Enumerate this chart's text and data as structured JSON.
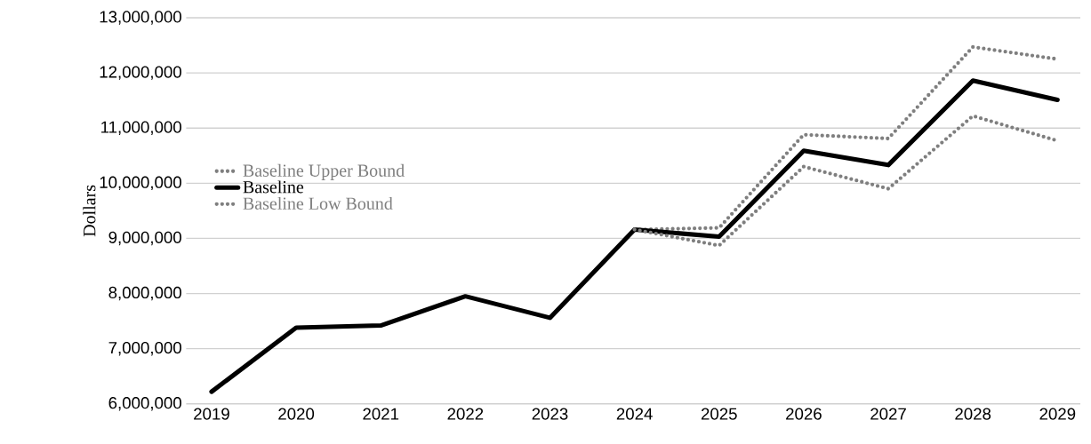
{
  "chart_data": {
    "type": "line",
    "ylabel": "Dollars",
    "categories": [
      "2019",
      "2020",
      "2021",
      "2022",
      "2023",
      "2024",
      "2025",
      "2026",
      "2027",
      "2028",
      "2029"
    ],
    "series": [
      {
        "name": "Baseline Upper Bound",
        "color": "#7f7f7f",
        "line_style": "dotted",
        "values": [
          null,
          null,
          null,
          null,
          null,
          9160000,
          9190000,
          10880000,
          10810000,
          12470000,
          12250000
        ]
      },
      {
        "name": "Baseline",
        "color": "#000000",
        "line_style": "solid",
        "values": [
          6220000,
          7380000,
          7420000,
          7950000,
          7560000,
          9160000,
          9030000,
          10590000,
          10330000,
          11860000,
          11510000
        ]
      },
      {
        "name": "Baseline Low Bound",
        "color": "#7f7f7f",
        "line_style": "dotted",
        "values": [
          null,
          null,
          null,
          null,
          null,
          9160000,
          8870000,
          10300000,
          9900000,
          11220000,
          10770000
        ]
      }
    ],
    "ylim": [
      6000000,
      13000000
    ],
    "yticks": [
      {
        "value": 6000000,
        "label": "6,000,000"
      },
      {
        "value": 7000000,
        "label": "7,000,000"
      },
      {
        "value": 8000000,
        "label": "8,000,000"
      },
      {
        "value": 9000000,
        "label": "9,000,000"
      },
      {
        "value": 10000000,
        "label": "10,000,000"
      },
      {
        "value": 11000000,
        "label": "11,000,000"
      },
      {
        "value": 12000000,
        "label": "12,000,000"
      },
      {
        "value": 13000000,
        "label": "13,000,000"
      }
    ],
    "grid": "y",
    "legend": "left",
    "marker": "none"
  }
}
